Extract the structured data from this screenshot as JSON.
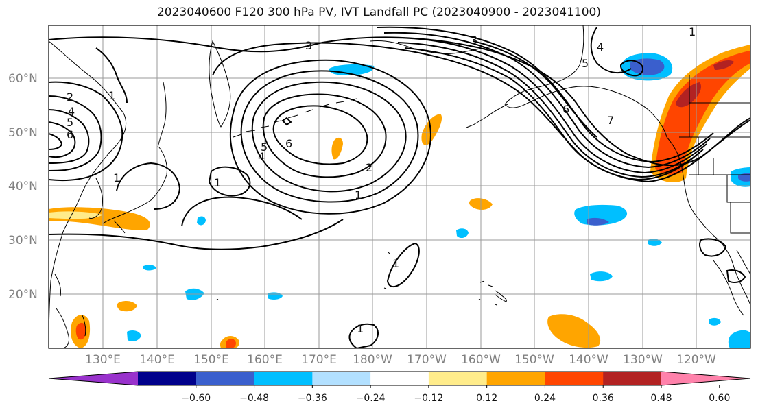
{
  "title": "2023040600 F120 300 hPa PV, IVT Landfall PC (2023040900 - 2023041100)",
  "map": {
    "lon_ticks": [
      "130°E",
      "140°E",
      "150°E",
      "160°E",
      "170°E",
      "180°W",
      "170°W",
      "160°W",
      "150°W",
      "140°W",
      "130°W",
      "120°W"
    ],
    "lat_ticks": [
      "60°N",
      "50°N",
      "40°N",
      "30°N",
      "20°N"
    ],
    "contour_labels": [
      "1",
      "2",
      "3",
      "4",
      "5",
      "6",
      "6",
      "5",
      "4",
      "3",
      "2",
      "1",
      "1",
      "6",
      "7",
      "5",
      "4",
      "1",
      "1",
      "1",
      "1"
    ],
    "gridline_color": "#9a9a9a",
    "coastline_color": "#000000"
  },
  "colorbar": {
    "tick_labels": [
      "−0.60",
      "−0.48",
      "−0.36",
      "−0.24",
      "−0.12",
      "0.12",
      "0.24",
      "0.36",
      "0.48",
      "0.60"
    ],
    "colors": [
      "#9932cc",
      "#00008b",
      "#3a5fcd",
      "#00bfff",
      "#b2e0ff",
      "#ffffff",
      "#ffec8b",
      "#ffa500",
      "#ff4500",
      "#b22222",
      "#ff82ab"
    ],
    "extend": "both"
  }
}
